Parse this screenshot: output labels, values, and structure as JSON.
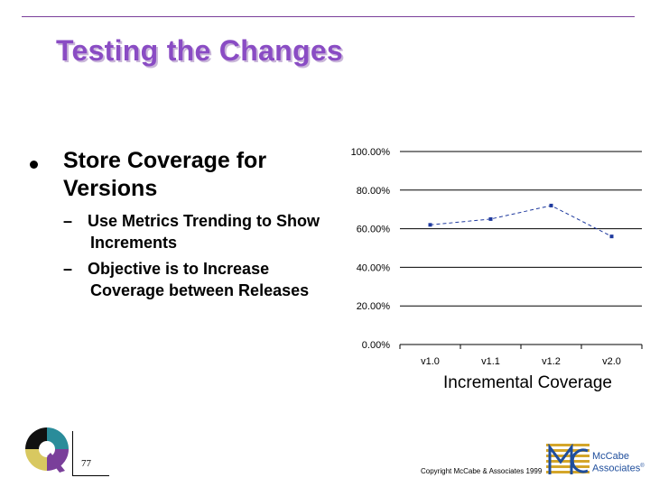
{
  "slide": {
    "title": "Testing the Changes",
    "bullet_main": "Store Coverage for Versions",
    "sub1_line1": "Use Metrics Trending to Show",
    "sub1_line2": "Increments",
    "sub2_line1": "Objective is to Increase",
    "sub2_line2": "Coverage between Releases",
    "dash": "–",
    "page_number": "77",
    "copyright": "Copyright McCabe & Associates 1999",
    "brand_line1": "McCabe",
    "brand_line2": "Associates"
  },
  "colors": {
    "title": "#8a4cc4",
    "rule": "#7a3f9a",
    "line_series": "#1f3a9e",
    "brand": "#1f4e9c",
    "brand_gold": "#d4a62a"
  },
  "chart_data": {
    "type": "line",
    "title": "Incremental Coverage",
    "categories": [
      "v1.0",
      "v1.1",
      "v1.2",
      "v2.0"
    ],
    "series": [
      {
        "values": [
          62.0,
          65.0,
          72.0,
          56.0
        ]
      }
    ],
    "y_ticks": [
      "0.00%",
      "20.00%",
      "40.00%",
      "60.00%",
      "80.00%",
      "100.00%"
    ],
    "ylim": [
      0,
      100
    ],
    "grid": true,
    "legend": "none"
  }
}
